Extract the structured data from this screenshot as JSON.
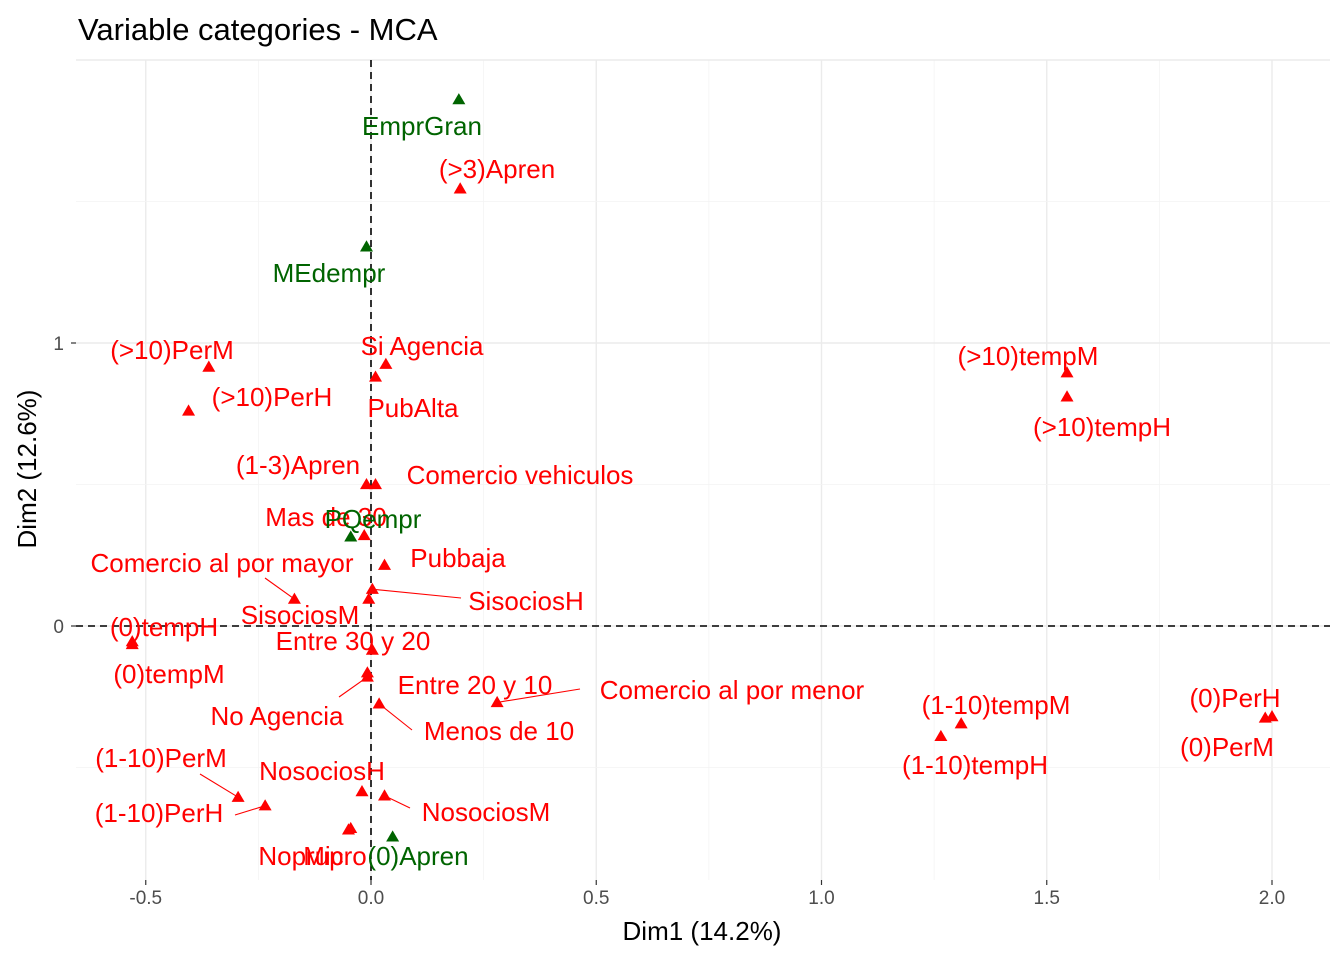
{
  "chart_data": {
    "type": "scatter",
    "title": "Variable categories - MCA",
    "xlabel": "Dim1 (14.2%)",
    "ylabel": "Dim2 (12.6%)",
    "xlim": [
      -0.65,
      2.12
    ],
    "ylim": [
      -0.88,
      2.0
    ],
    "x_ticks": [
      -0.5,
      0.0,
      0.5,
      1.0,
      1.5,
      2.0
    ],
    "x_tick_labels": [
      "-0.5",
      "0.0",
      "0.5",
      "1.0",
      "1.5",
      "2.0"
    ],
    "y_ticks": [
      0,
      1
    ],
    "y_tick_labels": [
      "0",
      "1"
    ],
    "grid": true,
    "legend": "none",
    "colors": {
      "red": "#ff0000",
      "green": "#006400"
    },
    "points": [
      {
        "label": "EmprGran",
        "x": 0.195,
        "y": 1.86,
        "color": "green"
      },
      {
        "label": "(>3)Apren",
        "x": 0.198,
        "y": 1.545,
        "color": "red"
      },
      {
        "label": "MEdempr",
        "x": -0.01,
        "y": 1.34,
        "color": "green"
      },
      {
        "label": "(>10)PerM",
        "x": -0.36,
        "y": 0.915,
        "color": "red"
      },
      {
        "label": "(>10)PerH",
        "x": -0.405,
        "y": 0.76,
        "color": "red"
      },
      {
        "label": "Si Agencia",
        "x": 0.033,
        "y": 0.925,
        "color": "red"
      },
      {
        "label": "PubAlta",
        "x": 0.01,
        "y": 0.88,
        "color": "red"
      },
      {
        "label": "(>10)tempM",
        "x": 1.545,
        "y": 0.895,
        "color": "red"
      },
      {
        "label": "(>10)tempH",
        "x": 1.545,
        "y": 0.81,
        "color": "red"
      },
      {
        "label": "(1-3)Apren",
        "x": -0.01,
        "y": 0.5,
        "color": "red"
      },
      {
        "label": "Comercio vehiculos",
        "x": 0.01,
        "y": 0.5,
        "color": "red"
      },
      {
        "label": "Mas de 30",
        "x": -0.015,
        "y": 0.32,
        "color": "red"
      },
      {
        "label": "PQempr",
        "x": -0.045,
        "y": 0.315,
        "color": "green"
      },
      {
        "label": "Pubbaja",
        "x": 0.03,
        "y": 0.215,
        "color": "red"
      },
      {
        "label": "Comercio al por mayor",
        "x": -0.17,
        "y": 0.095,
        "color": "red"
      },
      {
        "label": "SisociosH",
        "x": 0.003,
        "y": 0.13,
        "color": "red"
      },
      {
        "label": "SisociosM",
        "x": -0.005,
        "y": 0.095,
        "color": "red"
      },
      {
        "label": "(0)tempH",
        "x": -0.53,
        "y": -0.055,
        "color": "red"
      },
      {
        "label": "(0)tempM",
        "x": -0.53,
        "y": -0.065,
        "color": "red"
      },
      {
        "label": "Entre 30 y 20",
        "x": 0.003,
        "y": -0.085,
        "color": "red"
      },
      {
        "label": "Entre 20 y 10",
        "x": -0.008,
        "y": -0.165,
        "color": "red"
      },
      {
        "label": "No Agencia",
        "x": -0.008,
        "y": -0.18,
        "color": "red"
      },
      {
        "label": "Comercio al por menor",
        "x": 0.28,
        "y": -0.27,
        "color": "red"
      },
      {
        "label": "Menos de 10",
        "x": 0.018,
        "y": -0.275,
        "color": "red"
      },
      {
        "label": "(1-10)tempM",
        "x": 1.31,
        "y": -0.345,
        "color": "red"
      },
      {
        "label": "(1-10)tempH",
        "x": 1.265,
        "y": -0.39,
        "color": "red"
      },
      {
        "label": "(0)PerH",
        "x": 2.0,
        "y": -0.32,
        "color": "red"
      },
      {
        "label": "(0)PerM",
        "x": 1.985,
        "y": -0.325,
        "color": "red"
      },
      {
        "label": "(1-10)PerM",
        "x": -0.295,
        "y": -0.605,
        "color": "red"
      },
      {
        "label": "(1-10)PerH",
        "x": -0.235,
        "y": -0.635,
        "color": "red"
      },
      {
        "label": "NosociosH",
        "x": -0.02,
        "y": -0.585,
        "color": "red"
      },
      {
        "label": "NosociosM",
        "x": 0.03,
        "y": -0.6,
        "color": "red"
      },
      {
        "label": "Noprup",
        "x": -0.045,
        "y": -0.715,
        "color": "red"
      },
      {
        "label": "Micro",
        "x": -0.05,
        "y": -0.72,
        "color": "red"
      },
      {
        "label": "(0)Apren",
        "x": 0.048,
        "y": -0.745,
        "color": "green"
      }
    ]
  }
}
